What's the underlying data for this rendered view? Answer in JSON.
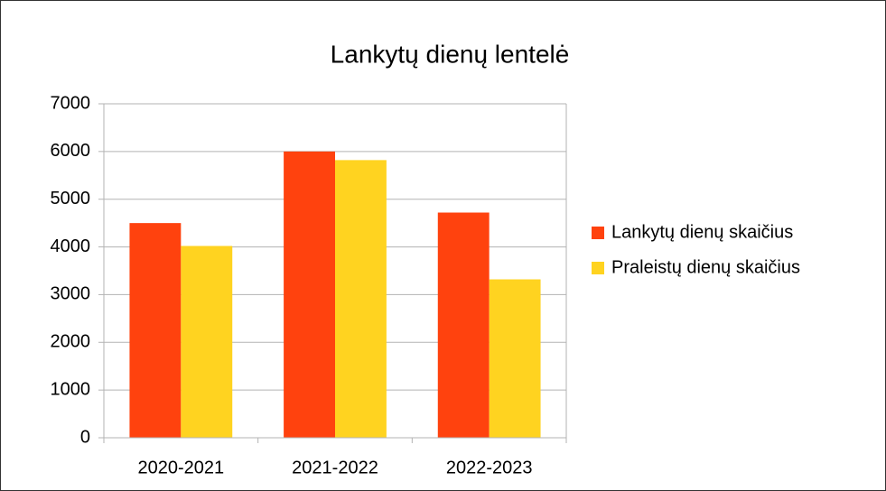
{
  "chart_data": {
    "type": "bar",
    "title": "Lankytų dienų lentelė",
    "categories": [
      "2020-2021",
      "2021-2022",
      "2022-2023"
    ],
    "series": [
      {
        "name": "Lankytų dienų skaičius",
        "color": "#ff420e",
        "values": [
          4500,
          6000,
          4720
        ]
      },
      {
        "name": "Praleistų dienų skaičius",
        "color": "#ffd320",
        "values": [
          4020,
          5820,
          3320
        ]
      }
    ],
    "ylim": [
      0,
      7000
    ],
    "yticks": [
      0,
      1000,
      2000,
      3000,
      4000,
      5000,
      6000,
      7000
    ],
    "grid": true,
    "legend": "right"
  }
}
